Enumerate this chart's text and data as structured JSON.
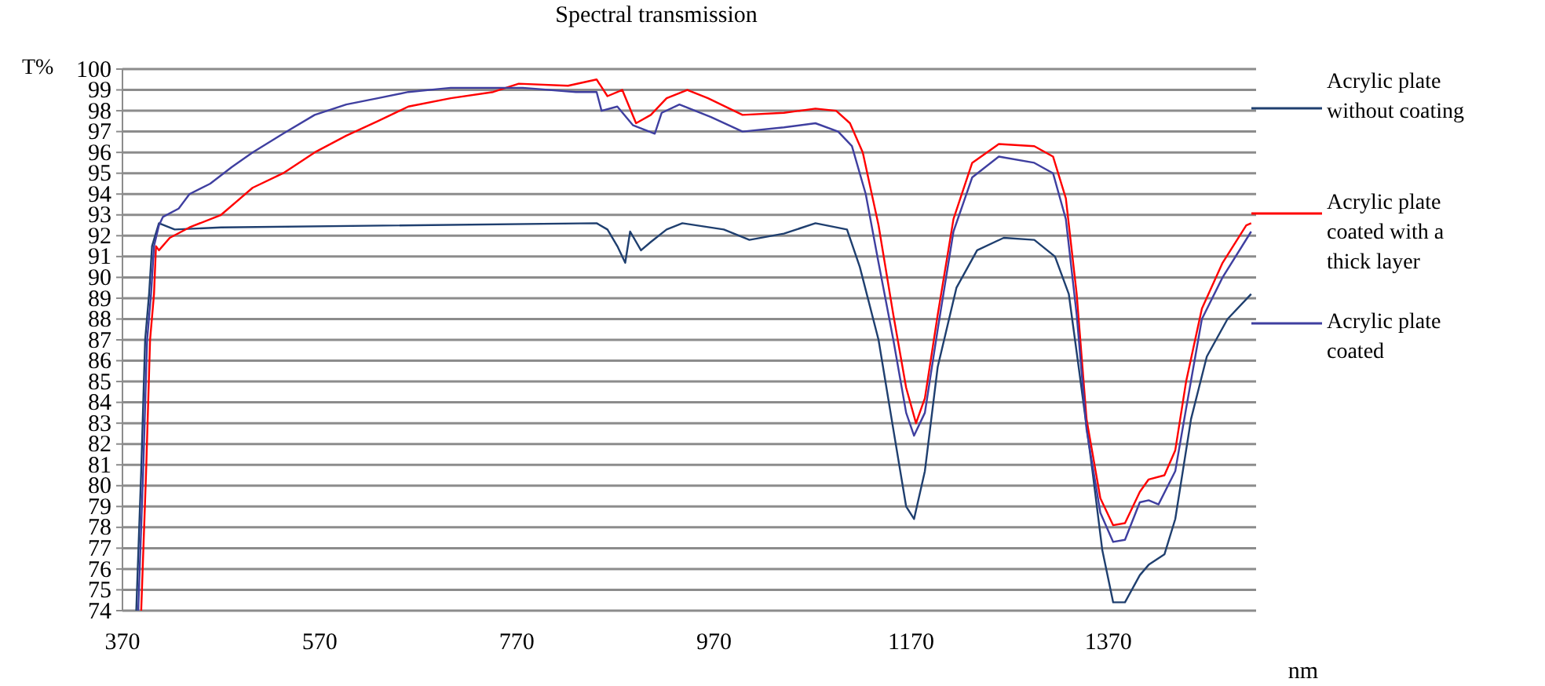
{
  "chart_data": {
    "type": "line",
    "title": "Spectral transmission",
    "xlabel": "nm",
    "ylabel": "T%",
    "xlim": [
      370,
      1520
    ],
    "xticks": [
      370,
      570,
      770,
      970,
      1170,
      1370
    ],
    "ylim": [
      74,
      100
    ],
    "yticks": [
      74,
      75,
      76,
      77,
      78,
      79,
      80,
      81,
      82,
      83,
      84,
      85,
      86,
      87,
      88,
      89,
      90,
      91,
      92,
      93,
      94,
      95,
      96,
      97,
      98,
      99,
      100
    ],
    "grid": "y",
    "legend": "right",
    "marker": "none",
    "line_style": "solid",
    "series": [
      {
        "name": "Acrylic plate without coating",
        "color": "#1f3f6f",
        "x": [
          384,
          389,
          393,
          397,
          400,
          407,
          423,
          470,
          851,
          862,
          872,
          880,
          885,
          896,
          906,
          922,
          938,
          980,
          1006,
          1041,
          1073,
          1105,
          1118,
          1137,
          1152,
          1165,
          1173,
          1184,
          1197,
          1216,
          1237,
          1264,
          1295,
          1316,
          1330,
          1340,
          1354,
          1364,
          1375,
          1387,
          1402,
          1411,
          1427,
          1438,
          1454,
          1470,
          1491,
          1515
        ],
        "values": [
          74,
          80.7,
          87,
          89.2,
          91.5,
          92.6,
          92.3,
          92.4,
          92.6,
          92.3,
          91.5,
          90.7,
          92.2,
          91.3,
          91.7,
          92.3,
          92.6,
          92.3,
          91.8,
          92.1,
          92.6,
          92.3,
          90.5,
          87,
          82.7,
          79,
          78.4,
          80.7,
          85.7,
          89.5,
          91.3,
          91.9,
          91.8,
          91,
          89.2,
          85.7,
          80.7,
          76.9,
          74.4,
          74.4,
          75.7,
          76.2,
          76.7,
          78.4,
          83.2,
          86.2,
          88,
          89.2
        ]
      },
      {
        "name": "Acrylic plate coated with a thick layer",
        "color": "#ff0000",
        "x": [
          389,
          394,
          398,
          402,
          404,
          407,
          418,
          438,
          470,
          502,
          533,
          565,
          597,
          629,
          660,
          703,
          746,
          772,
          822,
          851,
          862,
          877,
          891,
          906,
          922,
          943,
          964,
          999,
          1041,
          1073,
          1094,
          1108,
          1121,
          1137,
          1152,
          1165,
          1175,
          1184,
          1197,
          1213,
          1232,
          1259,
          1295,
          1314,
          1327,
          1338,
          1348,
          1362,
          1375,
          1387,
          1402,
          1411,
          1427,
          1438,
          1449,
          1465,
          1486,
          1510,
          1515
        ],
        "values": [
          74,
          80.7,
          87,
          89.2,
          91.5,
          91.3,
          91.9,
          92.4,
          93,
          94.3,
          95,
          96,
          96.8,
          97.5,
          98.2,
          98.6,
          98.9,
          99.3,
          99.2,
          99.5,
          98.7,
          99,
          97.4,
          97.8,
          98.6,
          99,
          98.6,
          97.8,
          97.9,
          98.1,
          98,
          97.4,
          96,
          92.5,
          88.2,
          84.7,
          83,
          84.2,
          88.2,
          92.8,
          95.5,
          96.4,
          96.3,
          95.8,
          93.8,
          89.2,
          83.2,
          79.4,
          78.1,
          78.2,
          79.7,
          80.3,
          80.5,
          81.7,
          85,
          88.5,
          90.7,
          92.5,
          92.6
        ]
      },
      {
        "name": "Acrylic plate coated",
        "color": "#3f3fa0",
        "x": [
          386,
          391,
          395,
          399,
          402,
          407,
          411,
          427,
          438,
          459,
          481,
          502,
          533,
          565,
          597,
          629,
          660,
          703,
          776,
          830,
          851,
          856,
          872,
          888,
          910,
          917,
          935,
          967,
          999,
          1041,
          1073,
          1096,
          1110,
          1124,
          1137,
          1152,
          1165,
          1173,
          1184,
          1197,
          1213,
          1232,
          1259,
          1295,
          1314,
          1327,
          1338,
          1348,
          1362,
          1375,
          1387,
          1402,
          1411,
          1421,
          1438,
          1449,
          1465,
          1486,
          1515
        ],
        "values": [
          74,
          80.7,
          87,
          89.2,
          91.5,
          92.5,
          92.9,
          93.3,
          94,
          94.5,
          95.3,
          96,
          96.9,
          97.8,
          98.3,
          98.6,
          98.9,
          99.1,
          99.1,
          98.9,
          98.9,
          98,
          98.2,
          97.3,
          96.9,
          97.9,
          98.3,
          97.7,
          97,
          97.2,
          97.4,
          97,
          96.3,
          94,
          90.7,
          87,
          83.5,
          82.4,
          83.5,
          87.5,
          92.2,
          94.8,
          95.8,
          95.5,
          95,
          92.8,
          88.2,
          82.7,
          78.7,
          77.3,
          77.4,
          79.2,
          79.3,
          79.1,
          80.7,
          83.7,
          88,
          90,
          92.2
        ]
      }
    ]
  }
}
